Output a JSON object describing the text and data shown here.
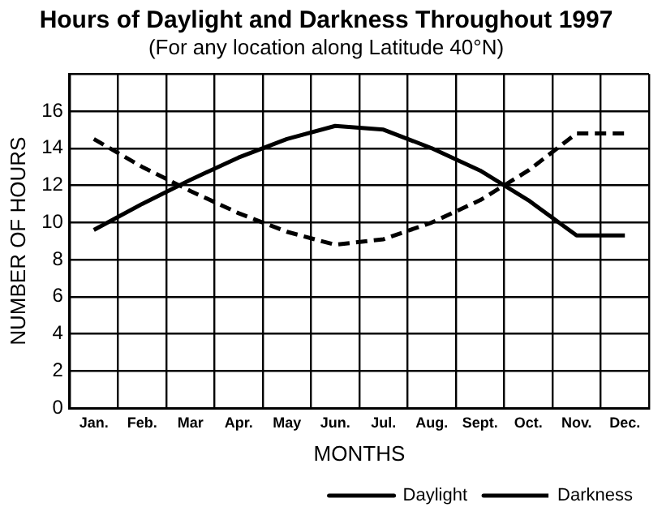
{
  "chart_data": {
    "type": "line",
    "title": "Hours of Daylight and Darkness Throughout 1997",
    "subtitle": "(For any location along Latitude 40°N)",
    "xlabel": "MONTHS",
    "ylabel": "NUMBER OF HOURS",
    "categories": [
      "Jan.",
      "Feb.",
      "Mar",
      "Apr.",
      "May",
      "Jun.",
      "Jul.",
      "Aug.",
      "Sept.",
      "Oct.",
      "Nov.",
      "Dec."
    ],
    "series": [
      {
        "name": "Daylight",
        "color": "#000000",
        "line_style": "solid",
        "values": [
          9.6,
          11,
          12.3,
          13.5,
          14.5,
          15.2,
          15,
          14,
          12.8,
          11.2,
          9.3,
          9.3
        ]
      },
      {
        "name": "Darkness",
        "color": "#000000",
        "line_style": "dashed",
        "values": [
          14.5,
          13,
          11.7,
          10.5,
          9.5,
          8.8,
          9.1,
          10,
          11.2,
          12.8,
          14.8,
          14.8
        ]
      }
    ],
    "ylim": [
      0,
      18
    ],
    "yticks": [
      0,
      2,
      4,
      6,
      8,
      10,
      12,
      14,
      16,
      {
        "value": 18,
        "label": null
      }
    ],
    "grid": true,
    "legend": "bottom right",
    "marker": "none"
  }
}
